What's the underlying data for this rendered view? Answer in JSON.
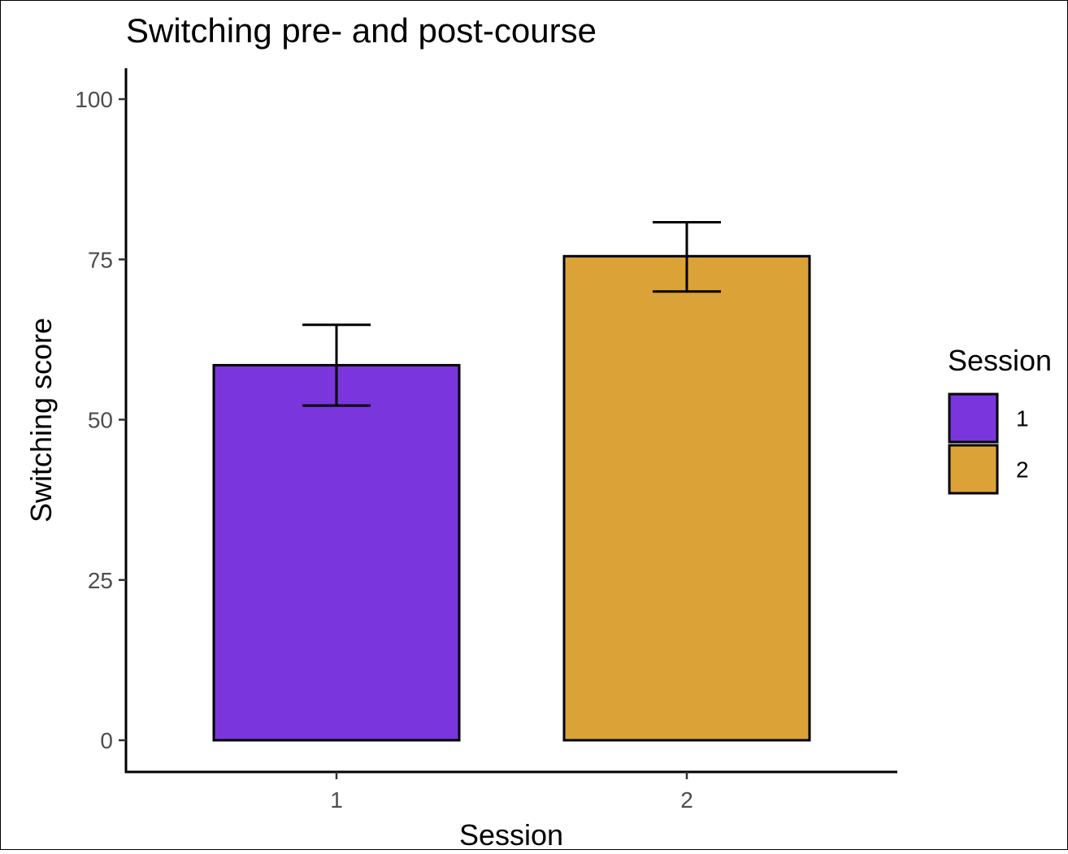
{
  "chart_data": {
    "type": "bar",
    "title": "Switching pre- and post-course",
    "xlabel": "Session",
    "ylabel": "Switching score",
    "categories": [
      "1",
      "2"
    ],
    "values": [
      58.5,
      75.5
    ],
    "error_bars": [
      {
        "category": "1",
        "low": 52.2,
        "high": 64.8
      },
      {
        "category": "2",
        "low": 70.0,
        "high": 80.8
      }
    ],
    "ylim": [
      -5,
      105
    ],
    "yticks": [
      0,
      25,
      50,
      75,
      100
    ],
    "ytick_labels": [
      "0",
      "25",
      "50",
      "75",
      "100"
    ],
    "grid": false,
    "legend": {
      "title": "Session",
      "position": "right",
      "entries": [
        {
          "label": "1",
          "color": "#7b35dc"
        },
        {
          "label": "2",
          "color": "#dba337"
        }
      ]
    },
    "colors": [
      "#7b35dc",
      "#dba337"
    ]
  }
}
